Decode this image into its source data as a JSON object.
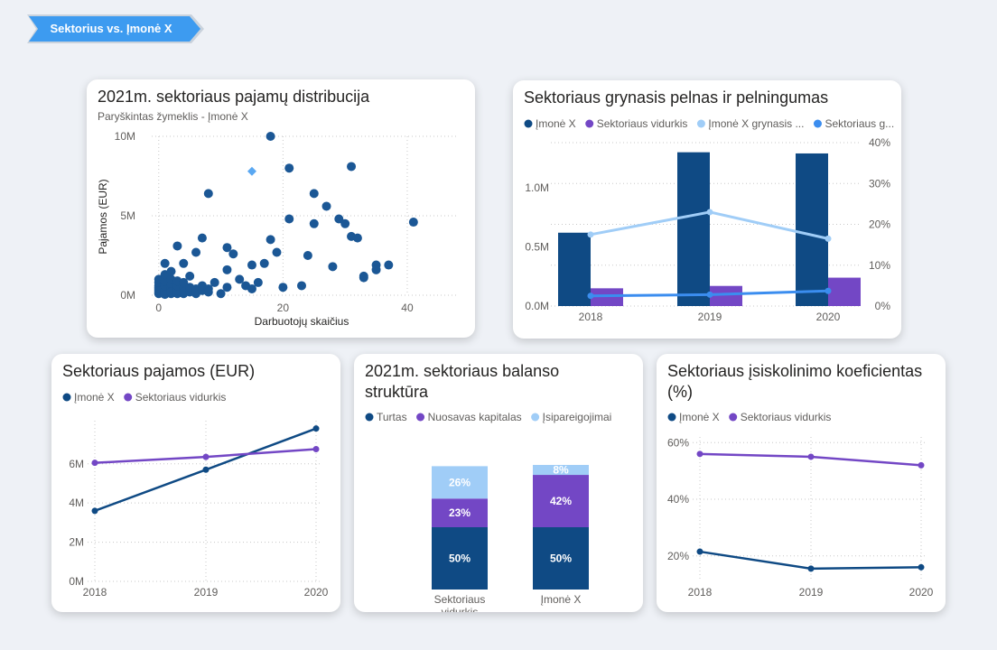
{
  "header": {
    "tag_label": "Sektorius vs. Įmonė X"
  },
  "colors": {
    "dark": "#0f4a84",
    "purple": "#7347c5",
    "light": "#a0cdf7",
    "blue": "#3b8def",
    "scatter": "#1b5795",
    "highlight": "#5aa8f2"
  },
  "chart_data": [
    {
      "id": "scatter",
      "type": "scatter",
      "title": "2021m. sektoriaus pajamų distribucija",
      "subtitle": "Paryškintas žymeklis  - Įmonė X",
      "xlabel": "Darbuotojų skaičius",
      "ylabel": "Pajamos (EUR)",
      "xlim": [
        -2,
        48
      ],
      "ylim": [
        0,
        10000000
      ],
      "xticks": [
        {
          "v": 0,
          "l": "0"
        },
        {
          "v": 20,
          "l": "20"
        },
        {
          "v": 40,
          "l": "40"
        }
      ],
      "yticks": [
        {
          "v": 0,
          "l": "0M"
        },
        {
          "v": 5000000,
          "l": "5M"
        },
        {
          "v": 10000000,
          "l": "10M"
        }
      ],
      "points": [
        [
          0,
          0.1
        ],
        [
          0,
          0.2
        ],
        [
          0,
          0.3
        ],
        [
          0,
          0.4
        ],
        [
          0,
          0.5
        ],
        [
          0,
          0.6
        ],
        [
          0,
          0.8
        ],
        [
          0,
          1.0
        ],
        [
          1,
          0.1
        ],
        [
          1,
          0.3
        ],
        [
          1,
          0.6
        ],
        [
          1,
          0.9
        ],
        [
          1,
          1.3
        ],
        [
          1,
          2.0
        ],
        [
          1,
          0.05
        ],
        [
          2,
          0.1
        ],
        [
          2,
          0.4
        ],
        [
          2,
          0.7
        ],
        [
          2,
          1.0
        ],
        [
          2,
          1.5
        ],
        [
          2,
          0.2
        ],
        [
          3,
          0.1
        ],
        [
          3,
          0.3
        ],
        [
          3,
          0.6
        ],
        [
          3,
          3.1
        ],
        [
          3,
          0.9
        ],
        [
          4,
          0.1
        ],
        [
          4,
          0.4
        ],
        [
          4,
          0.8
        ],
        [
          4,
          2.0
        ],
        [
          4,
          0.2
        ],
        [
          5,
          0.2
        ],
        [
          5,
          0.5
        ],
        [
          5,
          1.2
        ],
        [
          6,
          0.1
        ],
        [
          6,
          0.4
        ],
        [
          6,
          2.7
        ],
        [
          7,
          0.3
        ],
        [
          7,
          3.6
        ],
        [
          7,
          0.6
        ],
        [
          8,
          0.4
        ],
        [
          8,
          0.2
        ],
        [
          9,
          0.8
        ],
        [
          10,
          0.1
        ],
        [
          11,
          0.5
        ],
        [
          11,
          1.6
        ],
        [
          11,
          3.0
        ],
        [
          12,
          2.6
        ],
        [
          13,
          1.0
        ],
        [
          14,
          0.6
        ],
        [
          15,
          0.4
        ],
        [
          15,
          1.9
        ],
        [
          16,
          0.8
        ],
        [
          17,
          2.0
        ],
        [
          18,
          3.5
        ],
        [
          18,
          10.0
        ],
        [
          19,
          2.7
        ],
        [
          20,
          0.5
        ],
        [
          21,
          4.8
        ],
        [
          21,
          8.0
        ],
        [
          23,
          0.6
        ],
        [
          24,
          2.5
        ],
        [
          25,
          4.5
        ],
        [
          25,
          6.4
        ],
        [
          27,
          5.6
        ],
        [
          28,
          1.8
        ],
        [
          29,
          4.8
        ],
        [
          30,
          4.5
        ],
        [
          31,
          3.7
        ],
        [
          31,
          8.1
        ],
        [
          32,
          3.6
        ],
        [
          33,
          1.2
        ],
        [
          33,
          1.1
        ],
        [
          35,
          1.9
        ],
        [
          35,
          1.6
        ],
        [
          37,
          1.9
        ],
        [
          41,
          4.6
        ],
        [
          8,
          6.4
        ]
      ],
      "highlight": [
        15,
        7.8
      ]
    },
    {
      "id": "combo",
      "type": "bar",
      "title": "Sektoriaus grynasis pelnas ir pelningumas",
      "legend": [
        "Įmonė X",
        "Sektoriaus vidurkis",
        "Įmonė X grynasis ...",
        "Sektoriaus g..."
      ],
      "categories": [
        "2018",
        "2019",
        "2020"
      ],
      "series": [
        {
          "name": "Įmonė X",
          "values": [
            620000,
            1300000,
            1290000
          ]
        },
        {
          "name": "Sektoriaus vidurkis",
          "values": [
            150000,
            170000,
            240000
          ]
        }
      ],
      "lines": [
        {
          "name": "Įmonė X grynasis ...",
          "values": [
            17.5,
            23,
            16.5
          ]
        },
        {
          "name": "Sektoriaus g...",
          "values": [
            2.5,
            2.8,
            3.7
          ]
        }
      ],
      "ylim": [
        0,
        1450000
      ],
      "y2lim": [
        0,
        42
      ],
      "yticks": [
        {
          "v": 0,
          "l": "0.0M"
        },
        {
          "v": 500000,
          "l": "0.5M"
        },
        {
          "v": 1000000,
          "l": "1.0M"
        }
      ],
      "y2ticks": [
        {
          "v": 0,
          "l": "0%"
        },
        {
          "v": 10,
          "l": "10%"
        },
        {
          "v": 20,
          "l": "20%"
        },
        {
          "v": 30,
          "l": "30%"
        },
        {
          "v": 40,
          "l": "40%"
        }
      ]
    },
    {
      "id": "revenue",
      "type": "line",
      "title": "Sektoriaus pajamos (EUR)",
      "legend": [
        "Įmonė X",
        "Sektoriaus vidurkis"
      ],
      "categories": [
        "2018",
        "2019",
        "2020"
      ],
      "series": [
        {
          "name": "Įmonė X",
          "values": [
            3600000,
            5700000,
            7800000
          ]
        },
        {
          "name": "Sektoriaus vidurkis",
          "values": [
            6050000,
            6350000,
            6750000
          ]
        }
      ],
      "ylim": [
        0,
        8200000
      ],
      "yticks": [
        {
          "v": 0,
          "l": "0M"
        },
        {
          "v": 2000000,
          "l": "2M"
        },
        {
          "v": 4000000,
          "l": "4M"
        },
        {
          "v": 6000000,
          "l": "6M"
        }
      ]
    },
    {
      "id": "balance",
      "type": "bar",
      "title_lines": [
        "2021m. sektoriaus balanso",
        "struktūra"
      ],
      "legend": [
        "Turtas",
        "Nuosavas kapitalas",
        "Įsipareigojimai"
      ],
      "categories": [
        [
          "Sektoriaus",
          "vidurkis"
        ],
        [
          "Įmonė X"
        ]
      ],
      "series": [
        {
          "name": "Turtas",
          "values": [
            50,
            50
          ],
          "labels": [
            "50%",
            "50%"
          ]
        },
        {
          "name": "Nuosavas kapitalas",
          "values": [
            23,
            42
          ],
          "labels": [
            "23%",
            "42%"
          ]
        },
        {
          "name": "Įsipareigojimai",
          "values": [
            26,
            8
          ],
          "labels": [
            "26%",
            "8%"
          ]
        }
      ]
    },
    {
      "id": "debt",
      "type": "line",
      "title_lines": [
        "Sektoriaus įsiskolinimo koeficientas",
        "(%)"
      ],
      "legend": [
        "Įmonė X",
        "Sektoriaus vidurkis"
      ],
      "categories": [
        "2018",
        "2019",
        "2020"
      ],
      "series": [
        {
          "name": "Įmonė X",
          "values": [
            21.5,
            15.5,
            16
          ]
        },
        {
          "name": "Sektoriaus vidurkis",
          "values": [
            56,
            55,
            52
          ]
        }
      ],
      "ylim": [
        11,
        62
      ],
      "yticks": [
        {
          "v": 20,
          "l": "20%"
        },
        {
          "v": 40,
          "l": "40%"
        },
        {
          "v": 60,
          "l": "60%"
        }
      ]
    }
  ]
}
